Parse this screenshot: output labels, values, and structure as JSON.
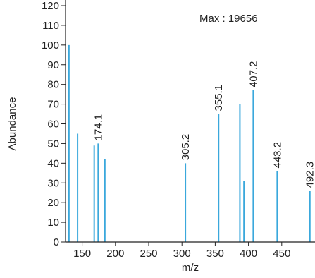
{
  "chart_data": {
    "type": "bar",
    "title": "",
    "xlabel": "m/z",
    "ylabel": "Abundance",
    "xlim": [
      125,
      500
    ],
    "ylim": [
      0,
      120
    ],
    "xticks": [
      150,
      200,
      250,
      300,
      350,
      400,
      450
    ],
    "yticks": [
      0,
      10,
      20,
      30,
      40,
      50,
      60,
      70,
      80,
      90,
      100,
      110,
      120
    ],
    "max_text": "Max : 19656",
    "grid": false,
    "peak_color": "#3aa8dc",
    "peaks": [
      {
        "mz": 130.1,
        "abundance": 100,
        "label": ""
      },
      {
        "mz": 143.1,
        "abundance": 55,
        "label": ""
      },
      {
        "mz": 168.1,
        "abundance": 49,
        "label": ""
      },
      {
        "mz": 174.1,
        "abundance": 50,
        "label": "174.1"
      },
      {
        "mz": 184.1,
        "abundance": 42,
        "label": ""
      },
      {
        "mz": 305.2,
        "abundance": 40,
        "label": "305.2"
      },
      {
        "mz": 355.1,
        "abundance": 65,
        "label": "355.1"
      },
      {
        "mz": 387.1,
        "abundance": 70,
        "label": ""
      },
      {
        "mz": 393.2,
        "abundance": 31,
        "label": ""
      },
      {
        "mz": 407.2,
        "abundance": 77,
        "label": "407.2"
      },
      {
        "mz": 443.2,
        "abundance": 36,
        "label": "443.2"
      },
      {
        "mz": 492.3,
        "abundance": 26,
        "label": "492.3"
      }
    ]
  }
}
